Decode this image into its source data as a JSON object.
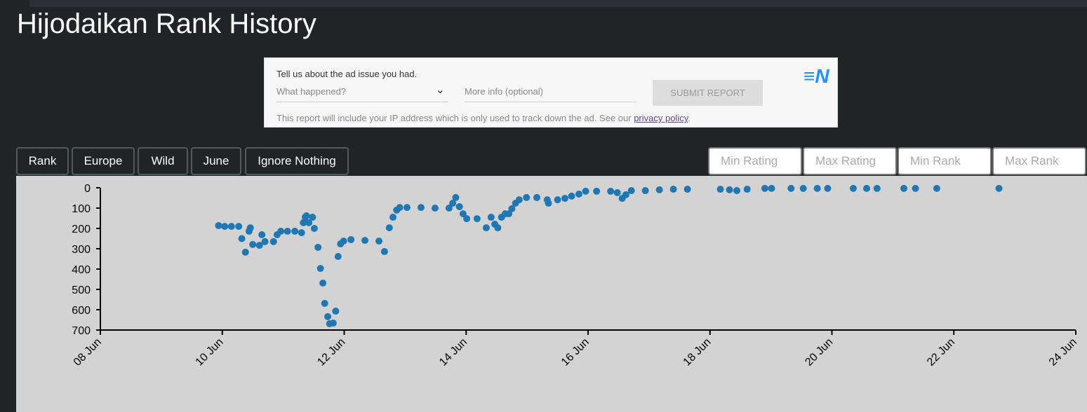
{
  "header": {
    "title": "Hijodaikan Rank History"
  },
  "ad_report": {
    "prompt": "Tell us about the ad issue you had.",
    "select": "What happened?",
    "info": "More info (optional)",
    "submit": "SUBMIT REPORT",
    "note": "This report will include your IP address which is only used to track down the ad. See our ",
    "link": "privacy policy",
    "note_end": "."
  },
  "buttons": [
    "Rank",
    "Europe",
    "Wild",
    "June",
    "Ignore Nothing"
  ],
  "inputs": [
    "Min Rating",
    "Max Rating",
    "Min Rank",
    "Max Rank"
  ],
  "chart_data": {
    "type": "scatter",
    "color": "#1f77b4",
    "y_reversed": true,
    "xlim": [
      8,
      24
    ],
    "xticks": [
      {
        "value": 8,
        "label": "08 Jun"
      },
      {
        "value": 10,
        "label": "10 Jun"
      },
      {
        "value": 12,
        "label": "12 Jun"
      },
      {
        "value": 14,
        "label": "14 Jun"
      },
      {
        "value": 16,
        "label": "16 Jun"
      },
      {
        "value": 18,
        "label": "18 Jun"
      },
      {
        "value": 20,
        "label": "20 Jun"
      },
      {
        "value": 22,
        "label": "22 Jun"
      },
      {
        "value": 24,
        "label": "24 Jun"
      }
    ],
    "ylim": [
      0,
      700
    ],
    "yticks": [
      0,
      100,
      200,
      300,
      400,
      500,
      600,
      700
    ],
    "x": [
      9.94,
      10.04,
      10.15,
      10.27,
      10.32,
      10.38,
      10.44,
      10.46,
      10.5,
      10.61,
      10.65,
      10.7,
      10.84,
      10.9,
      10.96,
      11.07,
      11.19,
      11.3,
      11.33,
      11.36,
      11.38,
      11.42,
      11.48,
      11.51,
      11.57,
      11.61,
      11.65,
      11.68,
      11.73,
      11.76,
      11.82,
      11.86,
      11.9,
      11.94,
      11.99,
      12.11,
      12.34,
      12.57,
      12.66,
      12.74,
      12.8,
      12.86,
      12.91,
      13.03,
      13.26,
      13.49,
      13.72,
      13.78,
      13.83,
      13.89,
      13.95,
      14.01,
      14.18,
      14.33,
      14.41,
      14.47,
      14.52,
      14.58,
      14.64,
      14.7,
      14.75,
      14.81,
      14.87,
      14.99,
      15.16,
      15.33,
      15.35,
      15.5,
      15.62,
      15.73,
      15.85,
      15.96,
      16.14,
      16.37,
      16.48,
      16.56,
      16.62,
      16.71,
      16.94,
      17.17,
      17.4,
      17.63,
      18.17,
      18.32,
      18.44,
      18.61,
      18.9,
      19.01,
      19.33,
      19.53,
      19.76,
      19.93,
      20.35,
      20.57,
      20.74,
      21.18,
      21.37,
      21.72,
      22.74
    ],
    "values": [
      186,
      190,
      190,
      190,
      250,
      317,
      214,
      197,
      279,
      283,
      231,
      265,
      265,
      231,
      214,
      214,
      214,
      221,
      172,
      145,
      138,
      172,
      145,
      200,
      293,
      397,
      469,
      569,
      634,
      669,
      666,
      607,
      338,
      276,
      262,
      255,
      259,
      262,
      314,
      197,
      145,
      110,
      97,
      97,
      97,
      100,
      100,
      76,
      48,
      93,
      128,
      152,
      152,
      197,
      145,
      179,
      197,
      145,
      128,
      128,
      103,
      76,
      59,
      48,
      48,
      59,
      76,
      59,
      52,
      41,
      31,
      17,
      17,
      17,
      24,
      52,
      34,
      14,
      14,
      10,
      7,
      7,
      7,
      10,
      14,
      7,
      3,
      3,
      3,
      3,
      3,
      3,
      3,
      3,
      3,
      3,
      3,
      3,
      3
    ]
  }
}
